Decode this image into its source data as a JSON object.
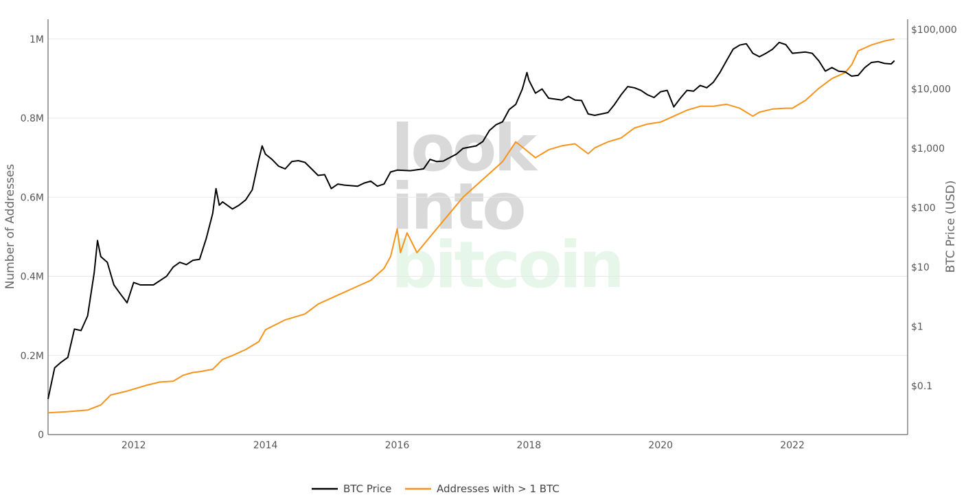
{
  "chart_data": {
    "type": "line",
    "watermark": [
      "look",
      "into",
      "bitcoin"
    ],
    "xaxis": {
      "ticks": [
        "2012",
        "2014",
        "2016",
        "2018",
        "2020",
        "2022"
      ],
      "range": [
        2010.7,
        2023.75
      ]
    },
    "yaxis_left": {
      "title": "Number of Addresses",
      "ticks": [
        "0",
        "0.2M",
        "0.4M",
        "0.6M",
        "0.8M",
        "1M"
      ],
      "range": [
        0,
        1050000
      ]
    },
    "yaxis_right": {
      "title": "BTC Price (USD)",
      "type": "log",
      "ticks": [
        "$0.1",
        "$1",
        "$10",
        "$100",
        "$1,000",
        "$10,000",
        "$100,000"
      ],
      "range": [
        0.015,
        150000
      ]
    },
    "grid": true,
    "legend_position": "bottom-center",
    "series": [
      {
        "name": "BTC Price",
        "axis": "right",
        "color": "#000000",
        "points": [
          [
            2010.7,
            0.06
          ],
          [
            2010.8,
            0.2
          ],
          [
            2010.9,
            0.25
          ],
          [
            2011.0,
            0.3
          ],
          [
            2011.1,
            0.9
          ],
          [
            2011.2,
            0.85
          ],
          [
            2011.3,
            1.5
          ],
          [
            2011.4,
            8
          ],
          [
            2011.45,
            28
          ],
          [
            2011.5,
            15
          ],
          [
            2011.6,
            12
          ],
          [
            2011.7,
            5
          ],
          [
            2011.8,
            3.5
          ],
          [
            2011.9,
            2.5
          ],
          [
            2012.0,
            5.5
          ],
          [
            2012.1,
            5
          ],
          [
            2012.3,
            5
          ],
          [
            2012.5,
            7
          ],
          [
            2012.6,
            10
          ],
          [
            2012.7,
            12
          ],
          [
            2012.8,
            11
          ],
          [
            2012.9,
            13
          ],
          [
            2013.0,
            13.5
          ],
          [
            2013.1,
            30
          ],
          [
            2013.2,
            80
          ],
          [
            2013.25,
            210
          ],
          [
            2013.3,
            110
          ],
          [
            2013.35,
            125
          ],
          [
            2013.5,
            95
          ],
          [
            2013.6,
            110
          ],
          [
            2013.7,
            135
          ],
          [
            2013.8,
            200
          ],
          [
            2013.9,
            650
          ],
          [
            2013.95,
            1100
          ],
          [
            2014.0,
            800
          ],
          [
            2014.1,
            650
          ],
          [
            2014.2,
            500
          ],
          [
            2014.3,
            450
          ],
          [
            2014.4,
            600
          ],
          [
            2014.5,
            620
          ],
          [
            2014.6,
            580
          ],
          [
            2014.7,
            450
          ],
          [
            2014.8,
            350
          ],
          [
            2014.9,
            360
          ],
          [
            2015.0,
            210
          ],
          [
            2015.1,
            250
          ],
          [
            2015.2,
            240
          ],
          [
            2015.4,
            230
          ],
          [
            2015.5,
            260
          ],
          [
            2015.6,
            280
          ],
          [
            2015.7,
            230
          ],
          [
            2015.8,
            250
          ],
          [
            2015.9,
            400
          ],
          [
            2016.0,
            430
          ],
          [
            2016.2,
            420
          ],
          [
            2016.4,
            450
          ],
          [
            2016.5,
            650
          ],
          [
            2016.6,
            600
          ],
          [
            2016.7,
            610
          ],
          [
            2016.8,
            700
          ],
          [
            2016.9,
            800
          ],
          [
            2017.0,
            1000
          ],
          [
            2017.2,
            1100
          ],
          [
            2017.3,
            1300
          ],
          [
            2017.4,
            2000
          ],
          [
            2017.5,
            2500
          ],
          [
            2017.6,
            2800
          ],
          [
            2017.7,
            4500
          ],
          [
            2017.8,
            5500
          ],
          [
            2017.9,
            10000
          ],
          [
            2017.97,
            19000
          ],
          [
            2018.0,
            14000
          ],
          [
            2018.1,
            8500
          ],
          [
            2018.2,
            10000
          ],
          [
            2018.3,
            7000
          ],
          [
            2018.5,
            6500
          ],
          [
            2018.6,
            7500
          ],
          [
            2018.7,
            6500
          ],
          [
            2018.8,
            6400
          ],
          [
            2018.9,
            3800
          ],
          [
            2019.0,
            3600
          ],
          [
            2019.2,
            4000
          ],
          [
            2019.3,
            5500
          ],
          [
            2019.4,
            8000
          ],
          [
            2019.5,
            11000
          ],
          [
            2019.6,
            10500
          ],
          [
            2019.7,
            9500
          ],
          [
            2019.8,
            8000
          ],
          [
            2019.9,
            7200
          ],
          [
            2020.0,
            9000
          ],
          [
            2020.1,
            9500
          ],
          [
            2020.2,
            5000
          ],
          [
            2020.3,
            7000
          ],
          [
            2020.4,
            9500
          ],
          [
            2020.5,
            9200
          ],
          [
            2020.6,
            11500
          ],
          [
            2020.7,
            10500
          ],
          [
            2020.8,
            13000
          ],
          [
            2020.9,
            19000
          ],
          [
            2021.0,
            30000
          ],
          [
            2021.1,
            47000
          ],
          [
            2021.2,
            55000
          ],
          [
            2021.3,
            58000
          ],
          [
            2021.4,
            40000
          ],
          [
            2021.5,
            35000
          ],
          [
            2021.6,
            40000
          ],
          [
            2021.7,
            47000
          ],
          [
            2021.8,
            61000
          ],
          [
            2021.9,
            56000
          ],
          [
            2022.0,
            40000
          ],
          [
            2022.2,
            42000
          ],
          [
            2022.3,
            40000
          ],
          [
            2022.4,
            30000
          ],
          [
            2022.5,
            20000
          ],
          [
            2022.6,
            23000
          ],
          [
            2022.7,
            20000
          ],
          [
            2022.8,
            19500
          ],
          [
            2022.9,
            16500
          ],
          [
            2023.0,
            17000
          ],
          [
            2023.1,
            23000
          ],
          [
            2023.2,
            28000
          ],
          [
            2023.3,
            29000
          ],
          [
            2023.4,
            27000
          ],
          [
            2023.5,
            26500
          ],
          [
            2023.55,
            30000
          ]
        ]
      },
      {
        "name": "Addresses with > 1 BTC",
        "axis": "left",
        "color": "#f7931a",
        "points": [
          [
            2010.7,
            55000
          ],
          [
            2011.0,
            58000
          ],
          [
            2011.3,
            62000
          ],
          [
            2011.5,
            75000
          ],
          [
            2011.65,
            100000
          ],
          [
            2011.9,
            110000
          ],
          [
            2012.2,
            125000
          ],
          [
            2012.4,
            133000
          ],
          [
            2012.6,
            135000
          ],
          [
            2012.75,
            150000
          ],
          [
            2012.9,
            157000
          ],
          [
            2013.0,
            159000
          ],
          [
            2013.2,
            165000
          ],
          [
            2013.35,
            190000
          ],
          [
            2013.5,
            200000
          ],
          [
            2013.7,
            215000
          ],
          [
            2013.9,
            235000
          ],
          [
            2014.0,
            265000
          ],
          [
            2014.3,
            290000
          ],
          [
            2014.6,
            305000
          ],
          [
            2014.8,
            330000
          ],
          [
            2015.0,
            345000
          ],
          [
            2015.4,
            375000
          ],
          [
            2015.6,
            390000
          ],
          [
            2015.8,
            420000
          ],
          [
            2015.9,
            450000
          ],
          [
            2016.0,
            520000
          ],
          [
            2016.05,
            460000
          ],
          [
            2016.15,
            510000
          ],
          [
            2016.3,
            460000
          ],
          [
            2016.5,
            500000
          ],
          [
            2016.8,
            560000
          ],
          [
            2017.0,
            600000
          ],
          [
            2017.2,
            630000
          ],
          [
            2017.4,
            660000
          ],
          [
            2017.6,
            690000
          ],
          [
            2017.8,
            740000
          ],
          [
            2017.95,
            720000
          ],
          [
            2018.1,
            700000
          ],
          [
            2018.3,
            720000
          ],
          [
            2018.5,
            730000
          ],
          [
            2018.7,
            735000
          ],
          [
            2018.9,
            710000
          ],
          [
            2019.0,
            725000
          ],
          [
            2019.2,
            740000
          ],
          [
            2019.4,
            750000
          ],
          [
            2019.6,
            775000
          ],
          [
            2019.8,
            785000
          ],
          [
            2020.0,
            790000
          ],
          [
            2020.2,
            805000
          ],
          [
            2020.4,
            820000
          ],
          [
            2020.6,
            830000
          ],
          [
            2020.8,
            830000
          ],
          [
            2021.0,
            835000
          ],
          [
            2021.2,
            825000
          ],
          [
            2021.4,
            805000
          ],
          [
            2021.5,
            815000
          ],
          [
            2021.7,
            823000
          ],
          [
            2021.9,
            825000
          ],
          [
            2022.0,
            825000
          ],
          [
            2022.2,
            845000
          ],
          [
            2022.4,
            875000
          ],
          [
            2022.6,
            900000
          ],
          [
            2022.8,
            915000
          ],
          [
            2022.9,
            935000
          ],
          [
            2023.0,
            970000
          ],
          [
            2023.2,
            985000
          ],
          [
            2023.4,
            995000
          ],
          [
            2023.55,
            1000000
          ]
        ]
      }
    ]
  }
}
